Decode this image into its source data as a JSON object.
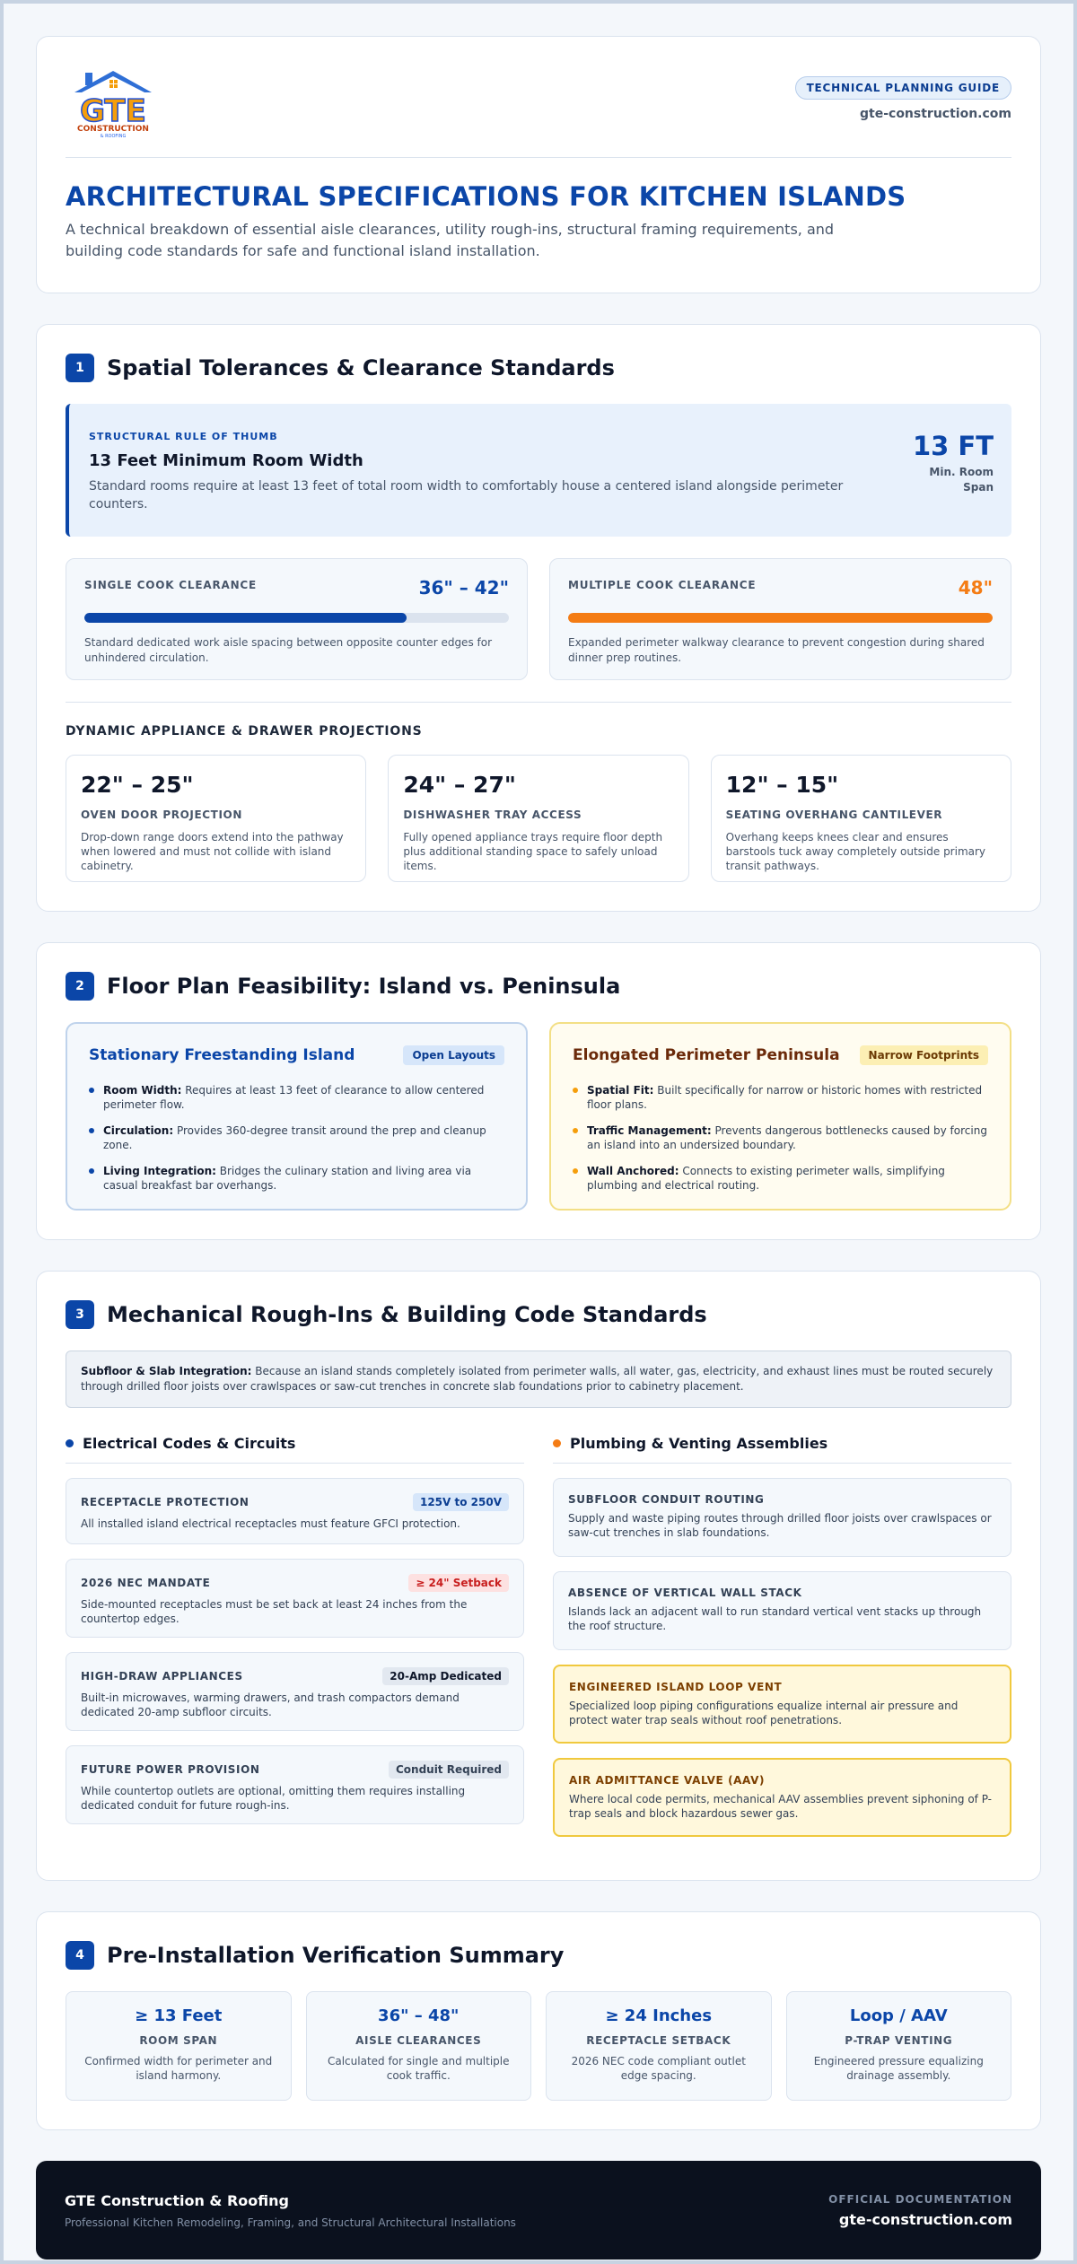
{
  "header": {
    "logo_text": "GTE",
    "logo_subtext": "CONSTRUCTION",
    "logo_small": "& ROOFING",
    "badge": "TECHNICAL PLANNING GUIDE",
    "site": "gte-construction.com",
    "title": "ARCHITECTURAL SPECIFICATIONS FOR KITCHEN ISLANDS",
    "subtitle": "A technical breakdown of essential aisle clearances, utility rough-ins, structural framing requirements, and building code standards for safe and functional island installation."
  },
  "section1": {
    "number": "1",
    "title": "Spatial Tolerances & Clearance Standards",
    "rule": {
      "tag": "STRUCTURAL RULE OF THUMB",
      "title": "13 Feet Minimum Room Width",
      "desc": "Standard rooms require at least 13 feet of total room width to comfortably house a centered island alongside perimeter counters.",
      "stat": "13 FT",
      "stat_unit_1": "Min. Room",
      "stat_unit_2": "Span"
    },
    "clearances": [
      {
        "label": "SINGLE COOK CLEARANCE",
        "value": "36\" – 42\"",
        "fill_percent": 76,
        "color": "#0b46a8",
        "desc": "Standard dedicated work aisle spacing between opposite counter edges for unhindered circulation."
      },
      {
        "label": "MULTIPLE COOK CLEARANCE",
        "value": "48\"",
        "fill_percent": 100,
        "color": "#f47c14",
        "desc": "Expanded perimeter walkway clearance to prevent congestion during shared dinner prep routines."
      }
    ],
    "projections_label": "DYNAMIC APPLIANCE & DRAWER PROJECTIONS",
    "projections": [
      {
        "value": "22\" – 25\"",
        "label": "OVEN DOOR PROJECTION",
        "desc": "Drop-down range doors extend into the pathway when lowered and must not collide with island cabinetry."
      },
      {
        "value": "24\" – 27\"",
        "label": "DISHWASHER TRAY ACCESS",
        "desc": "Fully opened appliance trays require floor depth plus additional standing space to safely unload items."
      },
      {
        "value": "12\" – 15\"",
        "label": "SEATING OVERHANG CANTILEVER",
        "desc": "Overhang keeps knees clear and ensures barstools tuck away completely outside primary transit pathways."
      }
    ]
  },
  "section2": {
    "number": "2",
    "title": "Floor Plan Feasibility: Island vs. Peninsula",
    "island": {
      "title": "Stationary Freestanding Island",
      "badge": "Open Layouts",
      "items": [
        {
          "label": "Room Width:",
          "text": " Requires at least 13 feet of clearance to allow centered perimeter flow."
        },
        {
          "label": "Circulation:",
          "text": " Provides 360-degree transit around the prep and cleanup zone."
        },
        {
          "label": "Living Integration:",
          "text": " Bridges the culinary station and living area via casual breakfast bar overhangs."
        }
      ]
    },
    "peninsula": {
      "title": "Elongated Perimeter Peninsula",
      "badge": "Narrow Footprints",
      "items": [
        {
          "label": "Spatial Fit:",
          "text": " Built specifically for narrow or historic homes with restricted floor plans."
        },
        {
          "label": "Traffic Management:",
          "text": " Prevents dangerous bottlenecks caused by forcing an island into an undersized boundary."
        },
        {
          "label": "Wall Anchored:",
          "text": " Connects to existing perimeter walls, simplifying plumbing and electrical routing."
        }
      ]
    }
  },
  "section3": {
    "number": "3",
    "title": "Mechanical Rough-Ins & Building Code Standards",
    "slab_label": "Subfloor & Slab Integration:",
    "slab_text": " Because an island stands completely isolated from perimeter walls, all water, gas, electricity, and exhaust lines must be routed securely through drilled floor joists over crawlspaces or saw-cut trenches in concrete slab foundations prior to cabinetry placement.",
    "electrical": {
      "title": "Electrical Codes & Circuits",
      "items": [
        {
          "label": "RECEPTACLE PROTECTION",
          "tag": "125V to 250V",
          "desc": "All installed island electrical receptacles must feature GFCI protection."
        },
        {
          "label": "2026 NEC MANDATE",
          "tag": "≥ 24\" Setback",
          "desc": "Side-mounted receptacles must be set back at least 24 inches from the countertop edges."
        },
        {
          "label": "HIGH-DRAW APPLIANCES",
          "tag": "20-Amp Dedicated",
          "desc": "Built-in microwaves, warming drawers, and trash compactors demand dedicated 20-amp subfloor circuits."
        },
        {
          "label": "FUTURE POWER PROVISION",
          "tag": "Conduit Required",
          "desc": "While countertop outlets are optional, omitting them requires installing dedicated conduit for future rough-ins."
        }
      ]
    },
    "plumbing": {
      "title": "Plumbing & Venting Assemblies",
      "items": [
        {
          "label": "SUBFLOOR CONDUIT ROUTING",
          "desc": "Supply and waste piping routes through drilled floor joists over crawlspaces or saw-cut trenches in slab foundations."
        },
        {
          "label": "ABSENCE OF VERTICAL WALL STACK",
          "desc": "Islands lack an adjacent wall to run standard vertical vent stacks up through the roof structure."
        },
        {
          "label": "ENGINEERED ISLAND LOOP VENT",
          "desc": "Specialized loop piping configurations equalize internal air pressure and protect water trap seals without roof penetrations."
        },
        {
          "label": "AIR ADMITTANCE VALVE (AAV)",
          "desc": "Where local code permits, mechanical AAV assemblies prevent siphoning of P-trap seals and block hazardous sewer gas."
        }
      ]
    }
  },
  "section4": {
    "number": "4",
    "title": "Pre-Installation Verification Summary",
    "items": [
      {
        "value": "≥ 13 Feet",
        "label": "ROOM SPAN",
        "desc": "Confirmed width for perimeter and island harmony."
      },
      {
        "value": "36\" – 48\"",
        "label": "AISLE CLEARANCES",
        "desc": "Calculated for single and multiple cook traffic."
      },
      {
        "value": "≥ 24 Inches",
        "label": "RECEPTACLE SETBACK",
        "desc": "2026 NEC code compliant outlet edge spacing."
      },
      {
        "value": "Loop / AAV",
        "label": "P-TRAP VENTING",
        "desc": "Engineered pressure equalizing drainage assembly."
      }
    ]
  },
  "footer": {
    "company": "GTE Construction & Roofing",
    "tagline": "Professional Kitchen Remodeling, Framing, and Structural Architectural Installations",
    "doc_label": "OFFICIAL DOCUMENTATION",
    "site": "gte-construction.com"
  }
}
